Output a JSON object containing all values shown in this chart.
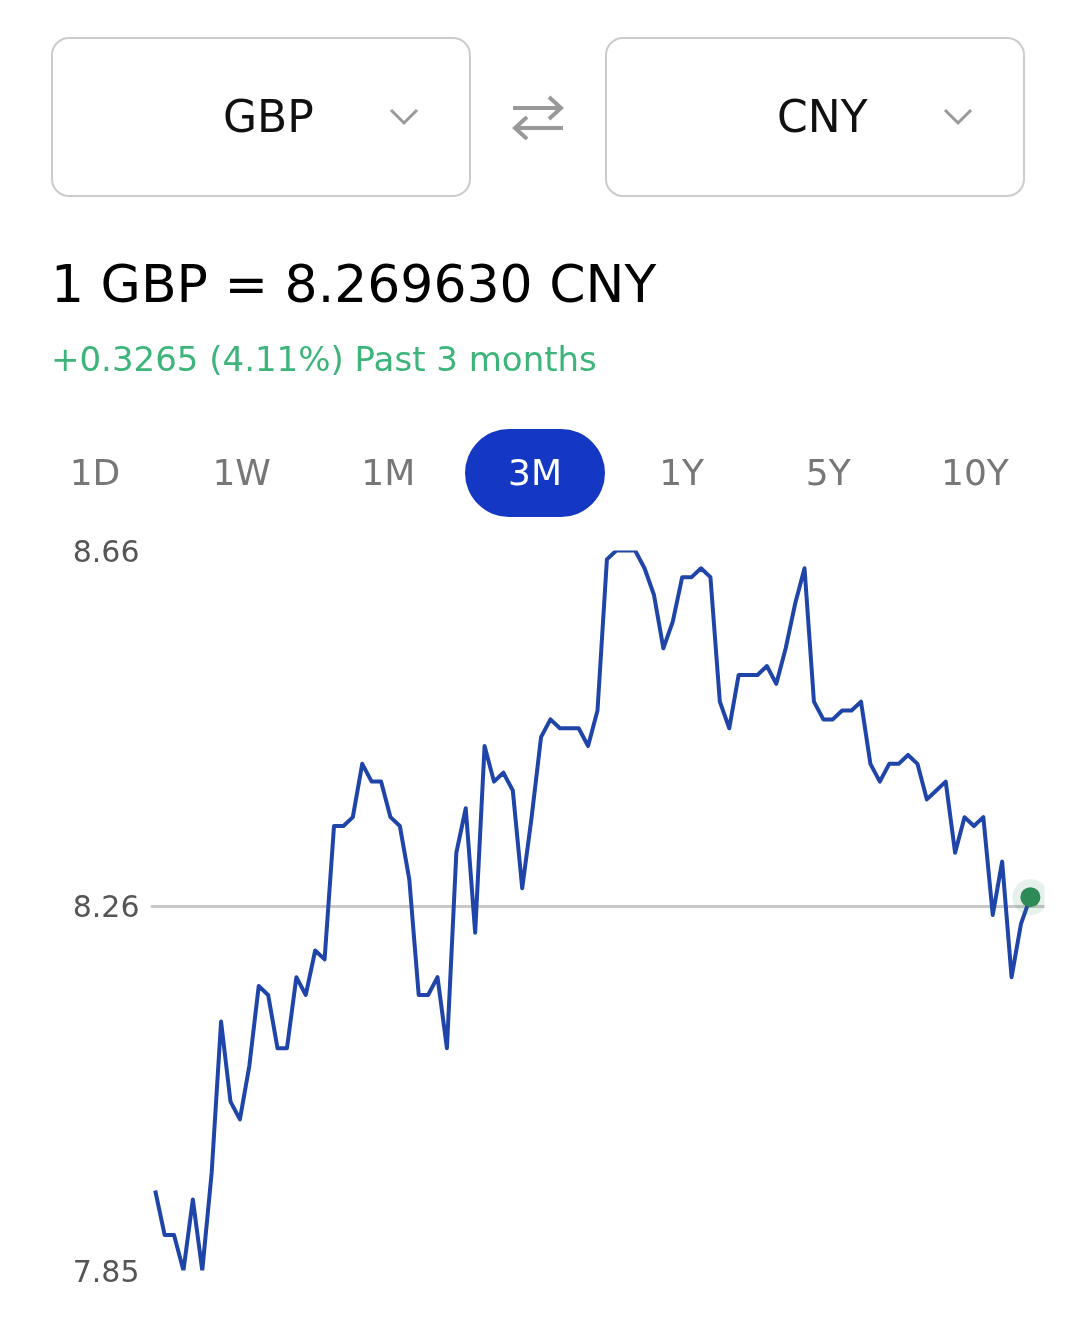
{
  "chart_data": {
    "type": "line",
    "title": "1 GBP = 8.269630 CNY",
    "subtitle": "+0.3265 (4.11%) Past 3 months",
    "annotations": [
      "GBP",
      "CNY",
      "1D",
      "1W",
      "1M",
      "3M",
      "1Y",
      "5Y",
      "10Y"
    ],
    "categories": [
      null,
      null,
      null,
      null,
      null,
      null,
      null,
      null,
      null,
      null,
      null,
      null,
      null,
      null,
      null,
      null,
      null,
      null,
      null,
      null,
      null,
      null,
      null,
      null,
      null,
      null,
      null,
      null,
      null,
      null,
      null,
      null,
      null,
      null,
      null,
      null,
      null,
      null,
      null,
      null,
      null,
      null,
      null,
      null,
      null,
      null,
      null,
      null,
      null,
      null,
      null,
      null,
      null,
      null,
      null,
      null,
      null,
      null,
      null,
      null,
      null,
      null,
      null,
      null,
      null,
      null,
      null,
      null,
      null,
      null,
      null,
      null,
      null,
      null,
      null,
      null,
      null,
      null,
      null,
      null,
      null,
      null,
      null,
      null,
      null,
      null,
      null,
      null,
      null,
      null,
      null,
      null,
      null,
      null
    ],
    "series": [
      {
        "color": "#1f45a8",
        "values": [
          7.94,
          7.89,
          7.89,
          7.85,
          7.93,
          7.85,
          7.96,
          8.13,
          8.04,
          8.02,
          8.08,
          8.17,
          8.16,
          8.1,
          8.1,
          8.18,
          8.16,
          8.21,
          8.2,
          8.35,
          8.35,
          8.36,
          8.42,
          8.4,
          8.4,
          8.36,
          8.35,
          8.29,
          8.16,
          8.16,
          8.18,
          8.1,
          8.32,
          8.37,
          8.23,
          8.44,
          8.4,
          8.41,
          8.39,
          8.28,
          8.36,
          8.45,
          8.47,
          8.46,
          8.46,
          8.46,
          8.44,
          8.48,
          8.65,
          8.66,
          8.66,
          8.66,
          8.64,
          8.61,
          8.55,
          8.58,
          8.63,
          8.63,
          8.64,
          8.63,
          8.49,
          8.46,
          8.52,
          8.52,
          8.52,
          8.53,
          8.51,
          8.55,
          8.6,
          8.64,
          8.49,
          8.47,
          8.47,
          8.48,
          8.48,
          8.49,
          8.42,
          8.4,
          8.42,
          8.42,
          8.43,
          8.42,
          8.38,
          8.39,
          8.4,
          8.32,
          8.36,
          8.35,
          8.36,
          8.25,
          8.31,
          8.18,
          8.24,
          8.27
        ]
      },
      {
        "type": "scatter",
        "marker": "circle",
        "color": "#2e8b57",
        "values": [
          null,
          null,
          null,
          null,
          null,
          null,
          null,
          null,
          null,
          null,
          null,
          null,
          null,
          null,
          null,
          null,
          null,
          null,
          null,
          null,
          null,
          null,
          null,
          null,
          null,
          null,
          null,
          null,
          null,
          null,
          null,
          null,
          null,
          null,
          null,
          null,
          null,
          null,
          null,
          null,
          null,
          null,
          null,
          null,
          null,
          null,
          null,
          null,
          null,
          null,
          null,
          null,
          null,
          null,
          null,
          null,
          null,
          null,
          null,
          null,
          null,
          null,
          null,
          null,
          null,
          null,
          null,
          null,
          null,
          null,
          null,
          null,
          null,
          null,
          null,
          null,
          null,
          null,
          null,
          null,
          null,
          null,
          null,
          null,
          null,
          null,
          null,
          null,
          null,
          null,
          null,
          null,
          null,
          8.27
        ]
      }
    ],
    "ylim": [
      7.85,
      8.66
    ],
    "yticks": [
      7.85,
      8.26,
      8.66
    ],
    "grid": "y",
    "marker": "none",
    "line_style": "solid",
    "tick_labels": "y"
  }
}
